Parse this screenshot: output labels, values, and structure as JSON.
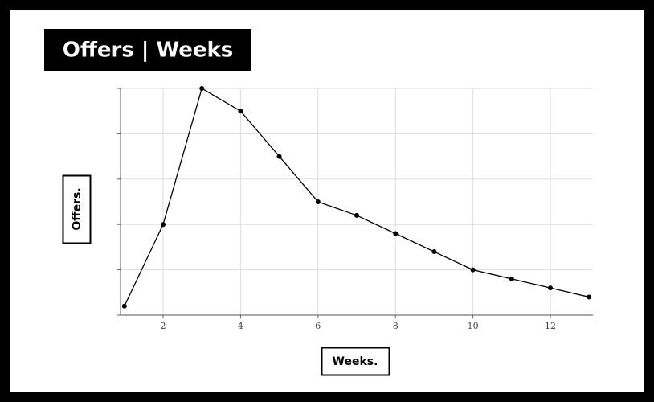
{
  "chart_data": {
    "type": "line",
    "title": "Offers | Weeks",
    "x_label": "Weeks.",
    "y_label": "Offers.",
    "x": [
      1,
      2,
      3,
      4,
      5,
      6,
      7,
      8,
      9,
      10,
      11,
      12,
      13
    ],
    "series": [
      {
        "name": "Offers",
        "color": "#000000",
        "values": [
          0.2,
          2.0,
          5.0,
          4.5,
          3.5,
          2.5,
          2.2,
          1.8,
          1.4,
          1.0,
          0.8,
          0.6,
          0.4
        ]
      }
    ],
    "xlim": [
      0.9,
      13.1
    ],
    "xticks": [
      2,
      4,
      6,
      8,
      10,
      12
    ],
    "ylim": [
      0,
      5
    ],
    "yticks": [
      0,
      1,
      2,
      3,
      4,
      5
    ],
    "grid": true
  }
}
